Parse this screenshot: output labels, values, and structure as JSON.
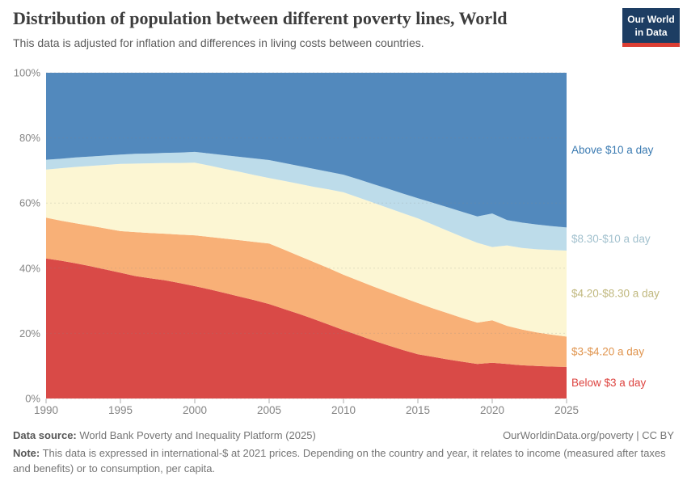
{
  "logo": {
    "line1": "Our World",
    "line2": "in Data"
  },
  "chart_data": {
    "type": "area",
    "stacked": true,
    "title": "Distribution of population between different poverty lines, World",
    "subtitle": "This data is adjusted for inflation and differences in living costs between countries.",
    "y_unit": "%",
    "ylim": [
      0,
      100
    ],
    "grid": "dashed",
    "legend_position": "right",
    "x": [
      1990,
      1991,
      1992,
      1993,
      1994,
      1995,
      1996,
      1997,
      1998,
      1999,
      2000,
      2001,
      2002,
      2003,
      2004,
      2005,
      2006,
      2007,
      2008,
      2009,
      2010,
      2011,
      2012,
      2013,
      2014,
      2015,
      2016,
      2017,
      2018,
      2019,
      2020,
      2021,
      2022,
      2023,
      2024,
      2025
    ],
    "x_ticks": [
      1990,
      1995,
      2000,
      2005,
      2010,
      2015,
      2020,
      2025
    ],
    "y_ticks": [
      {
        "label": "0%",
        "value": 0
      },
      {
        "label": "20%",
        "value": 20
      },
      {
        "label": "40%",
        "value": 40
      },
      {
        "label": "60%",
        "value": 60
      },
      {
        "label": "80%",
        "value": 80
      },
      {
        "label": "100%",
        "value": 100
      }
    ],
    "series": [
      {
        "name": "Below $3 a day",
        "color": "#d94a47",
        "label_color": "#dd4440",
        "values": [
          43.0,
          42.3,
          41.5,
          40.6,
          39.6,
          38.6,
          37.6,
          36.9,
          36.3,
          35.4,
          34.5,
          33.5,
          32.4,
          31.3,
          30.2,
          29.0,
          27.5,
          26.0,
          24.4,
          22.7,
          21.0,
          19.4,
          17.8,
          16.3,
          14.9,
          13.6,
          12.8,
          12.0,
          11.3,
          10.6,
          11.0,
          10.6,
          10.2,
          10.0,
          9.8,
          9.7
        ]
      },
      {
        "name": "$3-$4.20 a day",
        "color": "#f8b077",
        "label_color": "#e0954f",
        "values": [
          12.5,
          12.3,
          12.3,
          12.4,
          12.6,
          12.8,
          13.5,
          13.9,
          14.3,
          14.9,
          15.6,
          16.1,
          16.7,
          17.3,
          17.9,
          18.6,
          18.2,
          17.8,
          17.5,
          17.3,
          17.0,
          16.8,
          16.6,
          16.4,
          16.1,
          15.7,
          14.9,
          14.2,
          13.4,
          12.7,
          13.0,
          11.7,
          11.0,
          10.3,
          9.8,
          9.3
        ]
      },
      {
        "name": "$4.20-$8.30 a day",
        "color": "#fcf6d3",
        "label_color": "#c0b87e",
        "values": [
          14.8,
          16.1,
          17.3,
          18.4,
          19.5,
          20.6,
          21.0,
          21.4,
          21.7,
          22.0,
          22.3,
          21.9,
          21.4,
          21.0,
          20.5,
          20.1,
          21.1,
          22.1,
          23.1,
          24.2,
          25.3,
          25.5,
          25.7,
          25.8,
          25.9,
          26.0,
          25.7,
          25.3,
          24.9,
          24.5,
          22.5,
          24.7,
          25.0,
          25.5,
          26.0,
          26.4
        ]
      },
      {
        "name": "$8.30-$10 a day",
        "color": "#bddcea",
        "label_color": "#a2c1ce",
        "values": [
          3.0,
          2.9,
          2.9,
          2.9,
          2.9,
          2.9,
          3.0,
          3.0,
          3.1,
          3.2,
          3.3,
          3.7,
          4.2,
          4.6,
          5.1,
          5.5,
          5.5,
          5.5,
          5.5,
          5.4,
          5.4,
          5.6,
          5.7,
          5.9,
          6.0,
          6.2,
          6.7,
          7.2,
          7.7,
          8.1,
          10.3,
          7.8,
          7.8,
          7.6,
          7.3,
          7.1
        ]
      },
      {
        "name": "Above $10 a day",
        "color": "#5289bd",
        "label_color": "#3a7ab1",
        "values": [
          26.7,
          26.4,
          26.0,
          25.7,
          25.4,
          25.1,
          24.9,
          24.8,
          24.6,
          24.5,
          24.3,
          24.8,
          25.3,
          25.8,
          26.3,
          26.8,
          27.7,
          28.6,
          29.5,
          30.4,
          31.3,
          32.7,
          34.2,
          35.6,
          37.1,
          38.5,
          39.9,
          41.3,
          42.7,
          44.1,
          43.2,
          45.2,
          46.0,
          46.6,
          47.1,
          47.5
        ]
      }
    ]
  },
  "footer": {
    "datasource_label": "Data source:",
    "datasource_text": "World Bank Poverty and Inequality Platform (2025)",
    "credit": "OurWorldinData.org/poverty | CC BY",
    "note_label": "Note:",
    "note_text": "This data is expressed in international-$ at 2021 prices. Depending on the country and year, it relates to income (measured after taxes and benefits) or to consumption, per capita."
  }
}
